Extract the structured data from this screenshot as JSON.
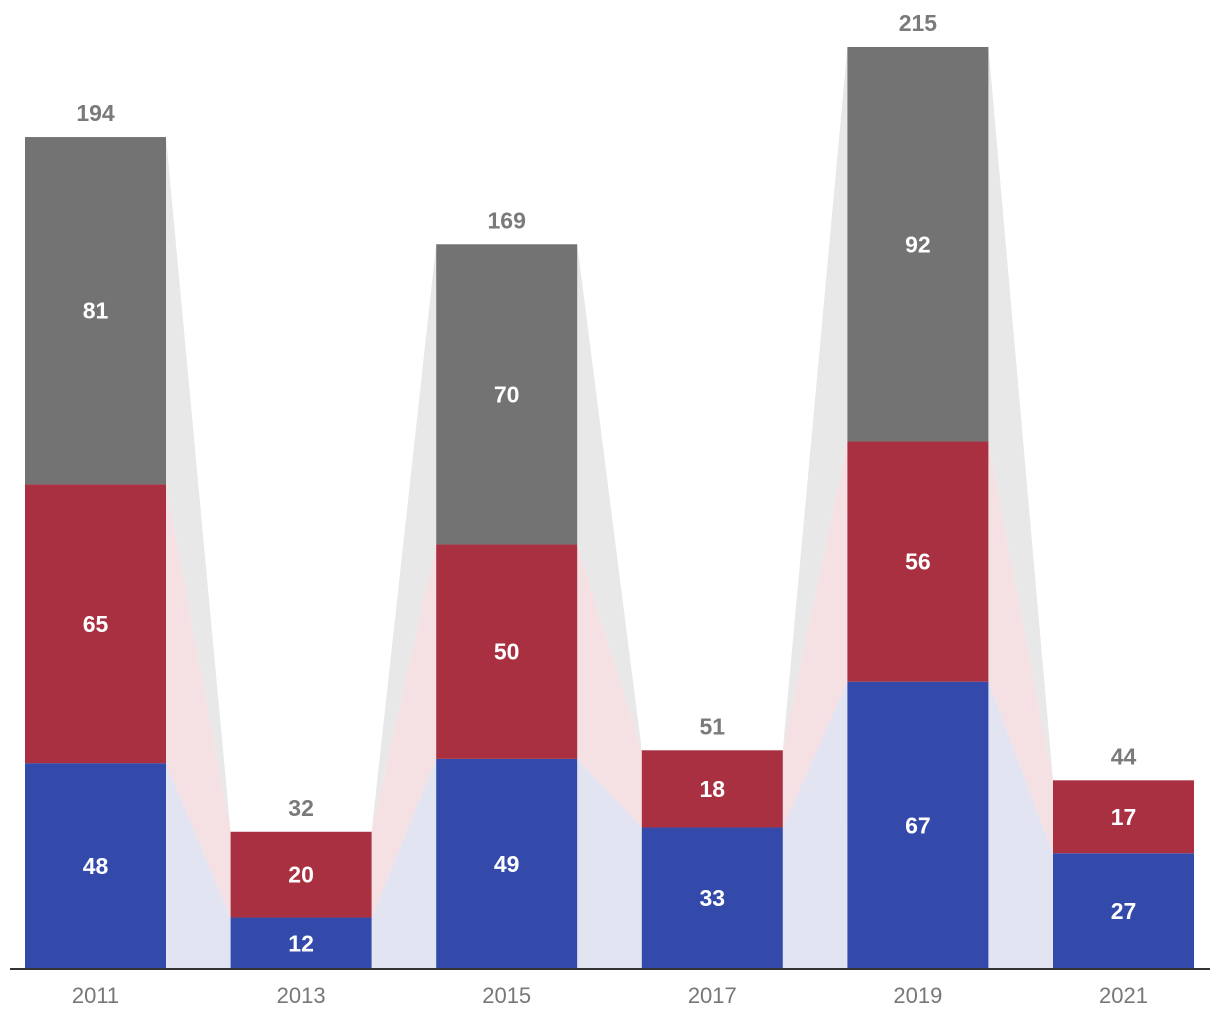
{
  "chart_data": {
    "type": "bar",
    "stacked": true,
    "categories": [
      "2011",
      "2013",
      "2015",
      "2017",
      "2019",
      "2021"
    ],
    "series": [
      {
        "color": "#334aab",
        "connector_color": "#e2e4f2",
        "values": [
          48,
          12,
          49,
          33,
          67,
          27
        ]
      },
      {
        "color": "#a93040",
        "connector_color": "#f5e0e3",
        "values": [
          65,
          20,
          50,
          18,
          56,
          17
        ]
      },
      {
        "color": "#737373",
        "connector_color": "#e8e8e8",
        "values": [
          81,
          0,
          70,
          0,
          92,
          0
        ]
      }
    ],
    "totals": [
      194,
      32,
      169,
      51,
      215,
      44
    ],
    "ylim": [
      0,
      215
    ],
    "grid": false,
    "connectors": true,
    "title": "",
    "xlabel": "",
    "ylabel": ""
  }
}
